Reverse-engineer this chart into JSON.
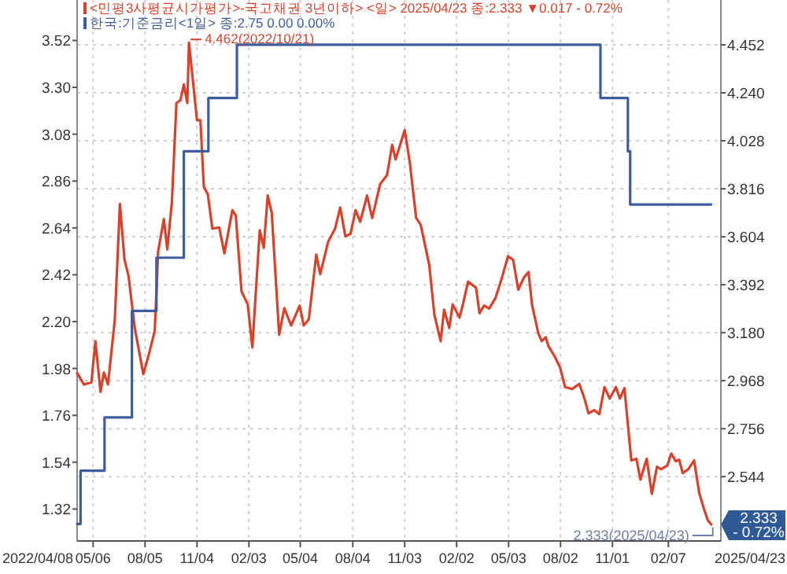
{
  "chart_data": {
    "type": "line",
    "x": [
      "2022-04-08",
      "2022-04-20",
      "2022-05-03",
      "2022-05-10",
      "2022-05-19",
      "2022-05-25",
      "2022-06-01",
      "2022-06-13",
      "2022-06-22",
      "2022-06-30",
      "2022-07-07",
      "2022-07-18",
      "2022-08-02",
      "2022-08-13",
      "2022-08-22",
      "2022-08-28",
      "2022-09-07",
      "2022-09-13",
      "2022-09-21",
      "2022-09-29",
      "2022-10-06",
      "2022-10-12",
      "2022-10-18",
      "2022-10-21",
      "2022-11-04",
      "2022-11-10",
      "2022-11-16",
      "2022-11-23",
      "2022-12-01",
      "2022-12-13",
      "2022-12-22",
      "2023-01-05",
      "2023-01-11",
      "2023-01-21",
      "2023-02-01",
      "2023-02-09",
      "2023-02-22",
      "2023-03-01",
      "2023-03-08",
      "2023-03-15",
      "2023-03-28",
      "2023-04-06",
      "2023-04-18",
      "2023-05-03",
      "2023-05-10",
      "2023-05-19",
      "2023-06-01",
      "2023-06-08",
      "2023-06-22",
      "2023-07-04",
      "2023-07-13",
      "2023-07-22",
      "2023-07-31",
      "2023-08-09",
      "2023-08-17",
      "2023-08-29",
      "2023-09-07",
      "2023-09-21",
      "2023-10-03",
      "2023-10-12",
      "2023-10-18",
      "2023-11-03",
      "2023-11-12",
      "2023-11-23",
      "2023-12-01",
      "2023-12-16",
      "2023-12-25",
      "2024-01-05",
      "2024-01-11",
      "2024-01-20",
      "2024-01-26",
      "2024-02-07",
      "2024-02-13",
      "2024-02-22",
      "2024-03-07",
      "2024-03-13",
      "2024-03-21",
      "2024-03-30",
      "2024-04-10",
      "2024-04-21",
      "2024-05-02",
      "2024-05-11",
      "2024-05-20",
      "2024-05-30",
      "2024-06-07",
      "2024-06-13",
      "2024-06-24",
      "2024-06-30",
      "2024-07-07",
      "2024-07-12",
      "2024-07-23",
      "2024-08-01",
      "2024-08-10",
      "2024-08-22",
      "2024-09-04",
      "2024-09-13",
      "2024-09-20",
      "2024-09-30",
      "2024-10-09",
      "2024-10-18",
      "2024-10-27",
      "2024-11-07",
      "2024-11-14",
      "2024-11-22",
      "2024-12-04",
      "2024-12-13",
      "2024-12-20",
      "2024-12-31",
      "2025-01-09",
      "2025-01-18",
      "2025-01-25",
      "2025-02-05",
      "2025-02-12",
      "2025-02-20",
      "2025-02-26",
      "2025-03-04",
      "2025-03-14",
      "2025-03-24",
      "2025-04-02",
      "2025-04-10",
      "2025-04-17",
      "2025-04-23"
    ],
    "series": [
      {
        "name": "<민평3사평균시가평가>-국고채권 3년이하> <일> 2025/04/23 종:2.333 ▼0.017 - 0.72%",
        "color": "#d9412b",
        "axis": "y2",
        "values": [
          3.002,
          2.951,
          2.961,
          3.143,
          2.919,
          3.004,
          2.951,
          3.236,
          3.749,
          3.502,
          3.432,
          3.201,
          2.997,
          3.097,
          3.189,
          3.541,
          3.682,
          3.548,
          3.756,
          4.195,
          4.207,
          4.277,
          4.195,
          4.462,
          4.119,
          4.119,
          3.826,
          3.791,
          3.64,
          3.645,
          3.531,
          3.721,
          3.698,
          3.363,
          3.305,
          3.115,
          3.633,
          3.555,
          3.786,
          3.71,
          3.171,
          3.289,
          3.212,
          3.3,
          3.212,
          3.24,
          3.525,
          3.439,
          3.583,
          3.64,
          3.733,
          3.606,
          3.617,
          3.721,
          3.67,
          3.786,
          3.687,
          3.837,
          3.876,
          4.01,
          3.946,
          4.075,
          3.93,
          3.687,
          3.657,
          3.479,
          3.259,
          3.143,
          3.282,
          3.201,
          3.305,
          3.247,
          3.305,
          3.405,
          3.379,
          3.266,
          3.3,
          3.287,
          3.333,
          3.42,
          3.518,
          3.502,
          3.37,
          3.425,
          3.448,
          3.305,
          3.178,
          3.143,
          3.16,
          3.12,
          3.074,
          3.028,
          2.94,
          2.931,
          2.954,
          2.889,
          2.824,
          2.838,
          2.82,
          2.94,
          2.889,
          2.94,
          2.889,
          2.935,
          2.616,
          2.623,
          2.531,
          2.623,
          2.468,
          2.588,
          2.577,
          2.593,
          2.646,
          2.612,
          2.619,
          2.56,
          2.577,
          2.616,
          2.473,
          2.404,
          2.352,
          2.333
        ]
      },
      {
        "name": "한국:기준금리<1일> 종:2.75 0.00 0.00%",
        "color": "#3d5d9e",
        "type": "step",
        "x": [
          "2022-04-08",
          "2022-04-14",
          "2022-05-26",
          "2022-07-13",
          "2022-08-25",
          "2022-10-12",
          "2022-11-24",
          "2023-01-13",
          "2024-10-11",
          "2024-11-28",
          "2024-12-02",
          "2025-04-23"
        ],
        "values": [
          1.25,
          1.5,
          1.75,
          2.25,
          2.5,
          3.0,
          3.25,
          3.5,
          3.25,
          3.0,
          2.75,
          2.75
        ]
      }
    ],
    "xlim": [
      "2022-04-08",
      "2025-05-10"
    ],
    "xticks": [
      {
        "value": "2022-05-06",
        "label": "05/06"
      },
      {
        "value": "2022-08-05",
        "label": "08/05"
      },
      {
        "value": "2022-11-04",
        "label": "11/04"
      },
      {
        "value": "2023-02-03",
        "label": "02/03"
      },
      {
        "value": "2023-05-04",
        "label": "05/04"
      },
      {
        "value": "2023-08-04",
        "label": "08/04"
      },
      {
        "value": "2023-11-03",
        "label": "11/03"
      },
      {
        "value": "2024-02-02",
        "label": "02/02"
      },
      {
        "value": "2024-05-03",
        "label": "05/03"
      },
      {
        "value": "2024-08-02",
        "label": "08/02"
      },
      {
        "value": "2024-11-01",
        "label": "11/01"
      },
      {
        "value": "2025-02-07",
        "label": "02/07"
      }
    ],
    "ylim": [
      1.17,
      3.71
    ],
    "yticks": [
      1.32,
      1.54,
      1.76,
      1.98,
      {
        "value": 2.2,
        "label": "2.20"
      },
      2.42,
      2.64,
      2.86,
      3.08,
      {
        "value": 3.3,
        "label": "3.30"
      },
      3.52
    ],
    "y2lim": [
      2.26,
      4.65
    ],
    "y2ticks": [
      2.544,
      2.756,
      2.968,
      {
        "value": 3.18,
        "label": "3.180"
      },
      3.392,
      3.604,
      3.816,
      4.028,
      {
        "value": 4.24,
        "label": "4.240"
      },
      4.452
    ],
    "annotations": [
      "4.462(2022/10/21)",
      "2.333(2025/04/23)",
      "2.333 - 0.72%",
      "2022/04/08",
      "2025/04/23"
    ],
    "grid": true,
    "legend": "top left"
  }
}
